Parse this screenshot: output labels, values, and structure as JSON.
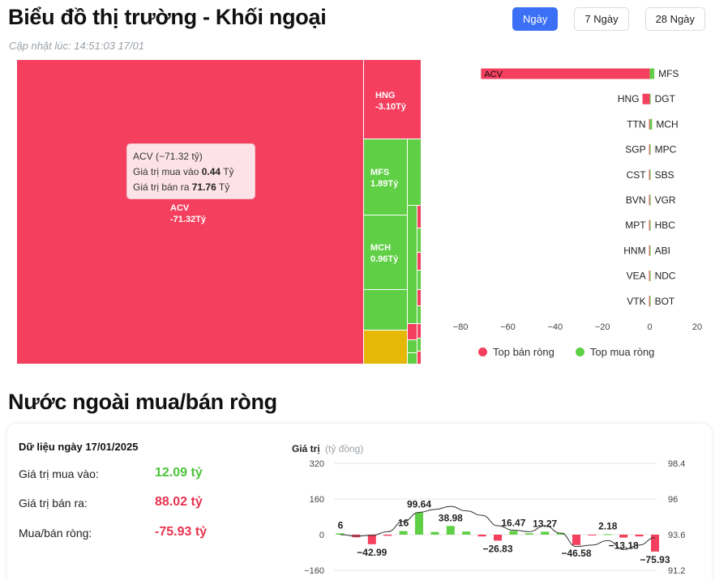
{
  "header": {
    "title": "Biểu đồ thị trường - Khối ngoại",
    "updated_label": "Cập nhật lúc:",
    "updated_time": "14:51:03 17/01"
  },
  "range_tabs": [
    {
      "label": "Ngày",
      "active": true
    },
    {
      "label": "7 Ngày",
      "active": false
    },
    {
      "label": "28 Ngày",
      "active": false
    }
  ],
  "colors": {
    "sell": "#f43f5e",
    "buy": "#5fd045",
    "neutral": "#e5b808",
    "accent": "#3b6ff5"
  },
  "treemap": {
    "tiles": [
      {
        "ticker": "ACV",
        "value": "-71.32Tỷ",
        "side": "sell"
      },
      {
        "ticker": "HNG",
        "value": "-3.10Tỷ",
        "side": "sell"
      },
      {
        "ticker": "MFS",
        "value": "1.89Tỷ",
        "side": "buy"
      },
      {
        "ticker": "MCH",
        "value": "0.96Tỷ",
        "side": "buy"
      }
    ],
    "tooltip": {
      "title": "ACV (−71.32 tỷ)",
      "buy_label": "Giá trị mua vào",
      "buy_value": "0.44",
      "sell_label": "Giá trị bán ra",
      "sell_value": "71.76",
      "unit": "Tỷ"
    }
  },
  "chart_data": [
    {
      "type": "bar",
      "orientation": "horizontal",
      "sell_tickers": [
        "ACV",
        "HNG",
        "TTN",
        "SGP",
        "CST",
        "BVN",
        "MPT",
        "HNM",
        "VEA",
        "VTK"
      ],
      "sell_values": [
        -71.32,
        -3.1,
        -0.3,
        -0.2,
        -0.2,
        -0.15,
        -0.15,
        -0.1,
        -0.1,
        -0.1
      ],
      "buy_tickers": [
        "MFS",
        "DGT",
        "MCH",
        "MPC",
        "SBS",
        "VGR",
        "HBC",
        "ABI",
        "NDC",
        "BOT"
      ],
      "buy_values": [
        1.89,
        0.2,
        0.96,
        0.1,
        0.1,
        0.1,
        0.05,
        0.05,
        0.05,
        0.05
      ],
      "xlim": [
        -80,
        20
      ],
      "xticks": [
        "−80",
        "−60",
        "−40",
        "−20",
        "0",
        "20"
      ],
      "legend": [
        {
          "label": "Top bán ròng",
          "side": "sell"
        },
        {
          "label": "Top mua ròng",
          "side": "buy"
        }
      ],
      "legend_position": "bottom"
    },
    {
      "type": "bar",
      "title": "Giá trị",
      "unit": "(tỷ đồng)",
      "values": [
        6,
        -12,
        -42.99,
        -5,
        16,
        99.64,
        12,
        38.98,
        14,
        -8,
        -26.83,
        16.47,
        6,
        13.27,
        8,
        -46.58,
        -3,
        2.18,
        -13.18,
        -8,
        -75.93
      ],
      "labelled_values": [
        "6",
        "−42.99",
        "16",
        "99.64",
        "38.98",
        "−26.83",
        "16.47",
        "13.27",
        "−46.58",
        "2.18",
        "−13.18",
        "−75.93"
      ],
      "line": [
        93.6,
        93.5,
        93.55,
        93.8,
        94.5,
        95.1,
        95.3,
        95.5,
        95.2,
        94.9,
        94.2,
        93.9,
        93.8,
        94.2,
        93.7,
        92.8,
        92.9,
        93.2,
        92.6,
        92.9,
        93.4
      ],
      "ylim_left": [
        -160,
        320
      ],
      "yticks_left": [
        "320",
        "160",
        "0",
        "−160"
      ],
      "ylim_right": [
        91.2,
        98.4
      ],
      "yticks_right": [
        "98.4",
        "96",
        "93.6",
        "91.2"
      ]
    }
  ],
  "summary": {
    "date_label": "Dữ liệu ngày 17/01/2025",
    "buy_label": "Giá trị mua vào:",
    "buy_value": "12.09 tỷ",
    "sell_label": "Giá trị bán ra:",
    "sell_value": "88.02 tỷ",
    "net_label": "Mua/bán ròng:",
    "net_value": "-75.93 tỷ"
  },
  "section_title": "Nước ngoài mua/bán ròng"
}
